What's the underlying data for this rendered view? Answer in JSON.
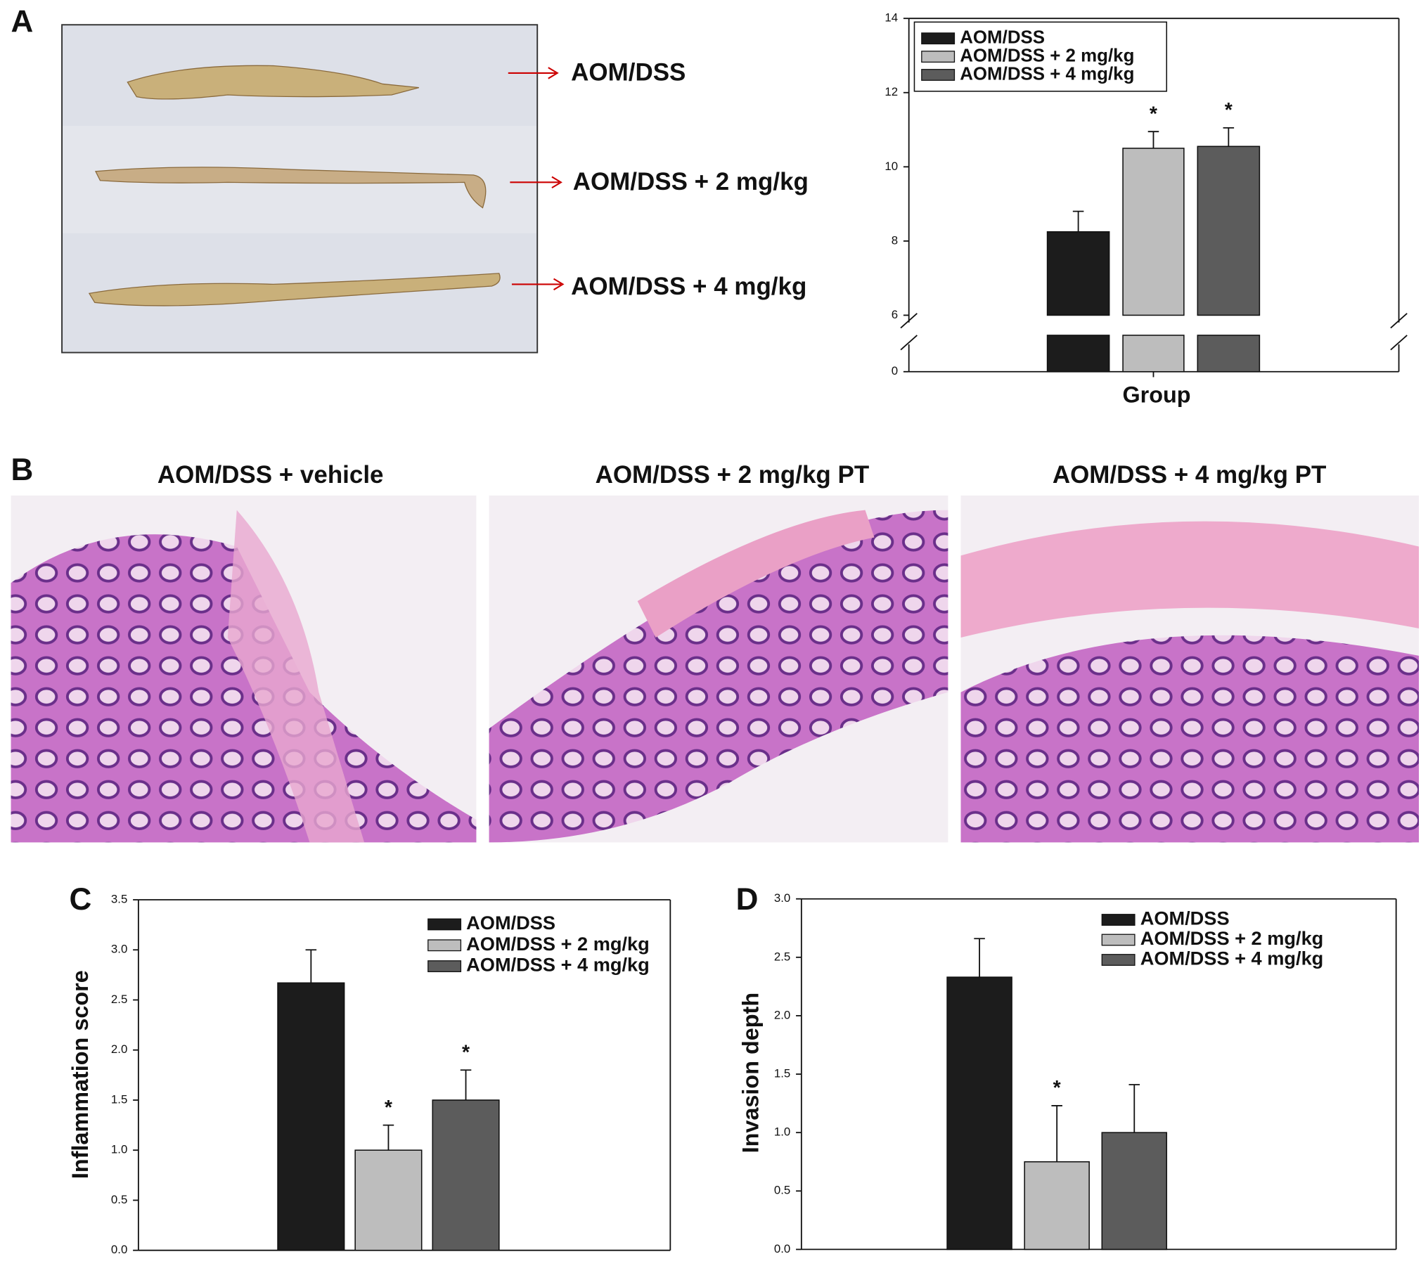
{
  "panel_labels": [
    "A",
    "B",
    "C",
    "D"
  ],
  "specimen_photo": {
    "labels": [
      "AOM/DSS",
      "AOM/DSS + 2 mg/kg",
      "AOM/DSS + 4 mg/kg"
    ]
  },
  "histology": {
    "titles": [
      "AOM/DSS + vehicle",
      "AOM/DSS + 2 mg/kg PT",
      "AOM/DSS + 4 mg/kg PT"
    ]
  },
  "chart_data": [
    {
      "type": "bar",
      "x_label": "Group",
      "ylim": [
        0,
        14
      ],
      "yticks": [
        0,
        6,
        8,
        10,
        12,
        14
      ],
      "axis_break": true,
      "series": [
        {
          "name": "AOM/DSS",
          "color": "#1c1c1c",
          "values": [
            8.25
          ],
          "errors": [
            0.55
          ]
        },
        {
          "name": "AOM/DSS + 2 mg/kg",
          "color": "#bdbdbd",
          "values": [
            10.5
          ],
          "errors": [
            0.45
          ],
          "annotation": "*"
        },
        {
          "name": "AOM/DSS + 4 mg/kg",
          "color": "#5c5c5c",
          "values": [
            10.55
          ],
          "errors": [
            0.5
          ],
          "annotation": "*"
        }
      ]
    },
    {
      "type": "bar",
      "y_label": "Inflammation score",
      "ylim": [
        0,
        3.5
      ],
      "yticks": [
        {
          "value": 0,
          "label": "0.0"
        },
        0.5,
        {
          "value": 1,
          "label": "1.0"
        },
        1.5,
        {
          "value": 2,
          "label": "2.0"
        },
        2.5,
        {
          "value": 3,
          "label": "3.0"
        },
        3.5
      ],
      "series": [
        {
          "name": "AOM/DSS",
          "color": "#1c1c1c",
          "values": [
            2.67
          ],
          "errors": [
            0.33
          ]
        },
        {
          "name": "AOM/DSS + 2 mg/kg",
          "color": "#bdbdbd",
          "values": [
            1.0
          ],
          "errors": [
            0.25
          ],
          "annotation": "*"
        },
        {
          "name": "AOM/DSS + 4 mg/kg",
          "color": "#5c5c5c",
          "values": [
            1.5
          ],
          "errors": [
            0.3
          ],
          "annotation": "*"
        }
      ]
    },
    {
      "type": "bar",
      "y_label": "Invasion depth",
      "ylim": [
        0,
        3
      ],
      "yticks": [
        {
          "value": 0,
          "label": "0.0"
        },
        0.5,
        {
          "value": 1,
          "label": "1.0"
        },
        1.5,
        {
          "value": 2,
          "label": "2.0"
        },
        2.5,
        {
          "value": 3,
          "label": "3.0"
        }
      ],
      "series": [
        {
          "name": "AOM/DSS",
          "color": "#1c1c1c",
          "values": [
            2.33
          ],
          "errors": [
            0.33
          ]
        },
        {
          "name": "AOM/DSS + 2 mg/kg",
          "color": "#bdbdbd",
          "values": [
            0.75
          ],
          "errors": [
            0.48
          ],
          "annotation": "*"
        },
        {
          "name": "AOM/DSS + 4 mg/kg",
          "color": "#5c5c5c",
          "values": [
            1.0
          ],
          "errors": [
            0.41
          ]
        }
      ]
    }
  ]
}
